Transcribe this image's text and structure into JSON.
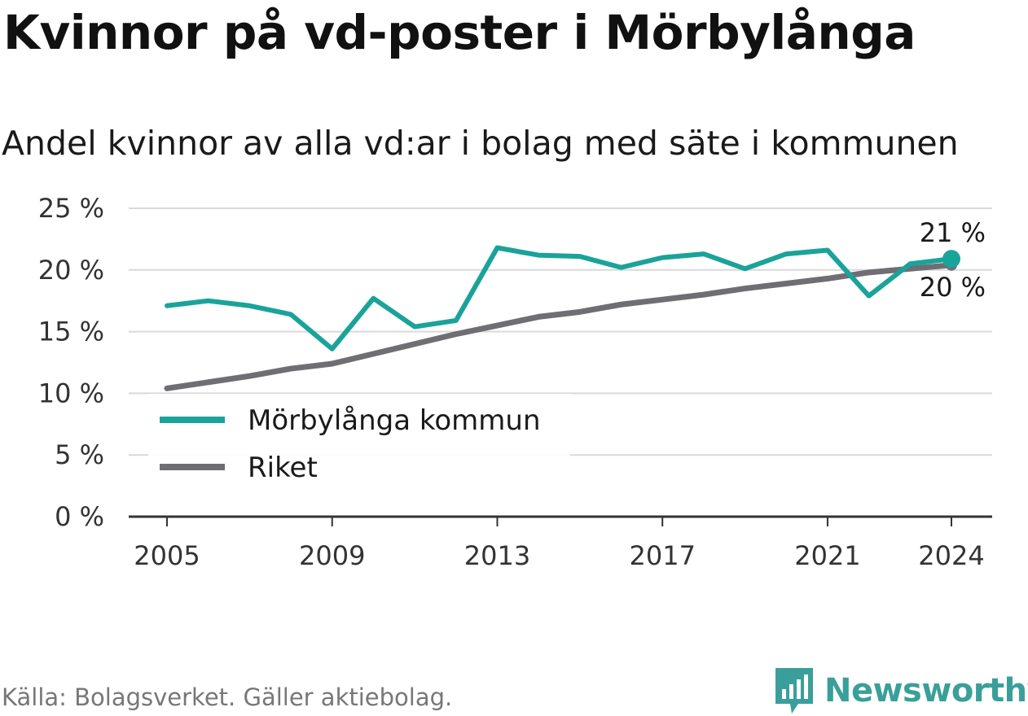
{
  "header": {
    "title": "Kvinnor på vd-poster i Mörbylånga",
    "subtitle": "Andel kvinnor av alla vd:ar i bolag med säte i kommunen"
  },
  "footer": {
    "source": "Källa: Bolagsverket. Gäller aktiebolag.",
    "brand": "Newsworthy"
  },
  "chart_data": {
    "type": "line",
    "x": [
      2005,
      2006,
      2007,
      2008,
      2009,
      2010,
      2011,
      2012,
      2013,
      2014,
      2015,
      2016,
      2017,
      2018,
      2019,
      2020,
      2021,
      2022,
      2023,
      2024
    ],
    "x_ticks": [
      2005,
      2009,
      2013,
      2017,
      2021,
      2024
    ],
    "y_ticks": [
      0,
      5,
      10,
      15,
      20,
      25
    ],
    "y_tick_labels": [
      "0 %",
      "5 %",
      "10 %",
      "15 %",
      "20 %",
      "25 %"
    ],
    "ylim": [
      0,
      25
    ],
    "grid": true,
    "legend_position": "bottom-left",
    "series": [
      {
        "name": "Mörbylånga kommun",
        "color": "#1aa39a",
        "values": [
          17.1,
          17.5,
          17.1,
          16.4,
          13.6,
          17.7,
          15.4,
          15.9,
          21.8,
          21.2,
          21.1,
          20.2,
          21.0,
          21.3,
          20.1,
          21.3,
          21.6,
          17.9,
          20.5,
          20.9
        ],
        "end_label": "21 %"
      },
      {
        "name": "Riket",
        "color": "#6e6e73",
        "values": [
          10.4,
          10.9,
          11.4,
          12.0,
          12.4,
          13.2,
          14.0,
          14.8,
          15.5,
          16.2,
          16.6,
          17.2,
          17.6,
          18.0,
          18.5,
          18.9,
          19.3,
          19.8,
          20.1,
          20.4
        ],
        "end_label": "20 %"
      }
    ]
  }
}
